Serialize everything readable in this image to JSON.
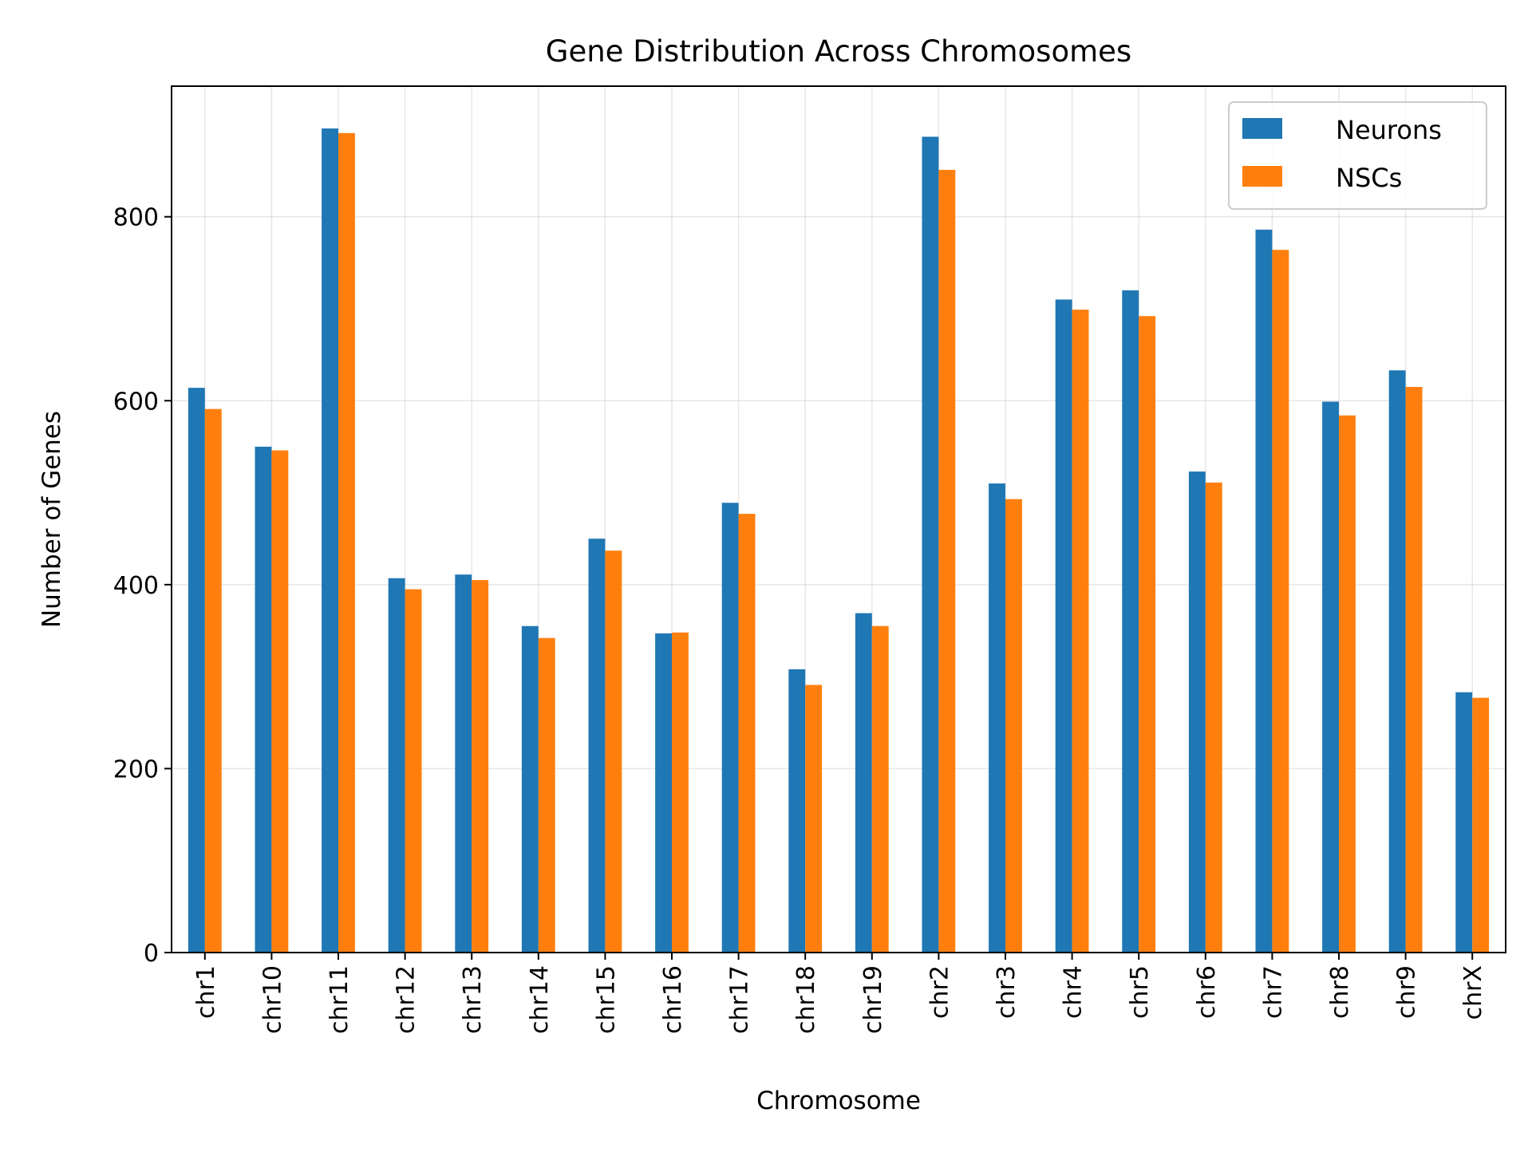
{
  "chart_data": {
    "type": "bar",
    "title": "Gene Distribution Across Chromosomes",
    "xlabel": "Chromosome",
    "ylabel": "Number of Genes",
    "categories": [
      "chr1",
      "chr10",
      "chr11",
      "chr12",
      "chr13",
      "chr14",
      "chr15",
      "chr16",
      "chr17",
      "chr18",
      "chr19",
      "chr2",
      "chr3",
      "chr4",
      "chr5",
      "chr6",
      "chr7",
      "chr8",
      "chr9",
      "chrX"
    ],
    "series": [
      {
        "name": "Neurons",
        "color": "#1f77b4",
        "values": [
          614,
          550,
          896,
          407,
          411,
          355,
          450,
          347,
          489,
          308,
          369,
          887,
          510,
          710,
          720,
          523,
          786,
          599,
          633,
          283
        ]
      },
      {
        "name": "NSCs",
        "color": "#ff7f0e",
        "values": [
          591,
          546,
          891,
          395,
          405,
          342,
          437,
          348,
          477,
          291,
          355,
          851,
          493,
          699,
          692,
          511,
          764,
          584,
          615,
          277
        ]
      }
    ],
    "ylim": [
      0,
      942
    ],
    "yticks": [
      0,
      200,
      400,
      600,
      800
    ],
    "grid": true,
    "legend_position": "top-right"
  }
}
